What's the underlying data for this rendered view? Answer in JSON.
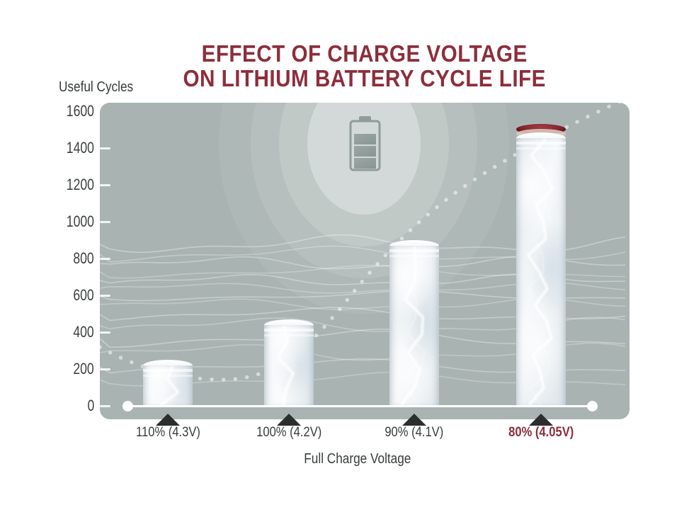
{
  "header": {
    "title_line1": "EFFECT OF CHARGE VOLTAGE",
    "title_line2": "ON LITHIUM BATTERY CYCLE LIFE"
  },
  "colors": {
    "accent_maroon": "#8d2e3b",
    "plot_background": "#a9b4b2",
    "text_dark": "#3a3f3e",
    "marker_triangle": "#2b2e2c",
    "bar_highlight_cap": "#8e2a33"
  },
  "chart_data": {
    "type": "bar",
    "title": "EFFECT OF CHARGE VOLTAGE ON LITHIUM BATTERY CYCLE LIFE",
    "ylabel": "Useful Cycles",
    "xlabel": "Full Charge Voltage",
    "ylim": [
      0,
      1600
    ],
    "yticks": [
      0,
      200,
      400,
      600,
      800,
      1000,
      1200,
      1400,
      1600
    ],
    "categories": [
      "110% (4.3V)",
      "100% (4.2V)",
      "90% (4.1V)",
      "80% (4.05V)"
    ],
    "values": [
      250,
      470,
      900,
      1530
    ],
    "highlighted_index": 3,
    "grid": false,
    "legend": false,
    "annotations": [
      "dotted rising trend curve",
      "battery icon with radial glow",
      "decorative wave lines",
      "bars drawn as battery-like cylinders with lightning texture"
    ]
  }
}
